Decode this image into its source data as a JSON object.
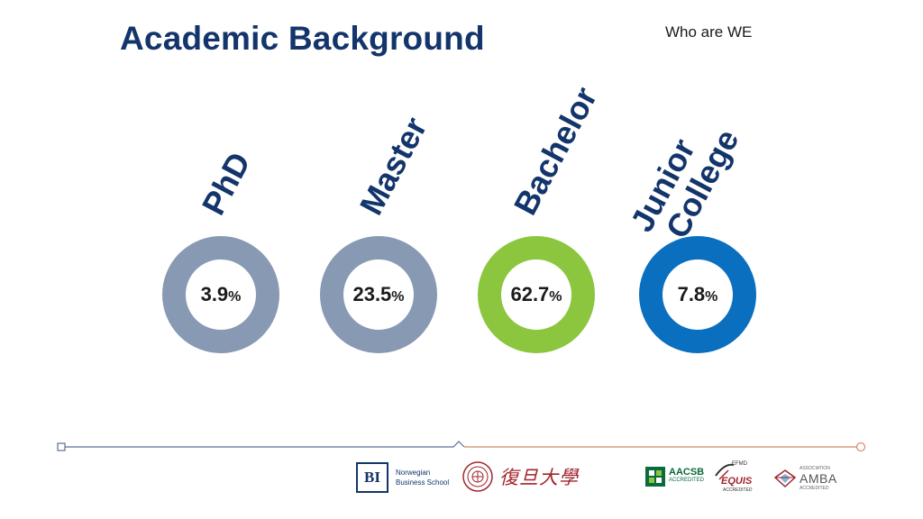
{
  "slide": {
    "title": "Academic Background",
    "section": "Who are WE"
  },
  "degrees": [
    {
      "label": "PhD",
      "value": "3.9",
      "unit": "%",
      "ring_color": "#8899b3"
    },
    {
      "label": "Master",
      "value": "23.5",
      "unit": "%",
      "ring_color": "#8899b3"
    },
    {
      "label": "Bachelor",
      "value": "62.7",
      "unit": "%",
      "ring_color": "#8cc63f"
    },
    {
      "label_line1": "Junior",
      "label_line2": "College",
      "value": "7.8",
      "unit": "%",
      "ring_color": "#0b6fbf"
    }
  ],
  "footer": {
    "bi_mark": "BI",
    "bi_name_line1": "Norwegian",
    "bi_name_line2": "Business School",
    "fudan_name": "復旦大學",
    "aacsb_name": "AACSB",
    "aacsb_sub": "ACCREDITED",
    "equis_top": "EFMD",
    "equis_name": "EQUIS",
    "equis_sub": "ACCREDITED",
    "amba_top": "ASSOCIATION",
    "amba_name": "AMBA",
    "amba_sub": "ACCREDITED"
  },
  "colors": {
    "title": "#13356b",
    "timeline_left": "#5a6f93",
    "timeline_right": "#d4896a"
  },
  "icons": [
    "timeline-start-square-icon",
    "timeline-end-circle-icon",
    "fudan-seal-icon",
    "aacsb-mark-icon",
    "equis-swoosh-icon",
    "amba-diamond-icon"
  ]
}
